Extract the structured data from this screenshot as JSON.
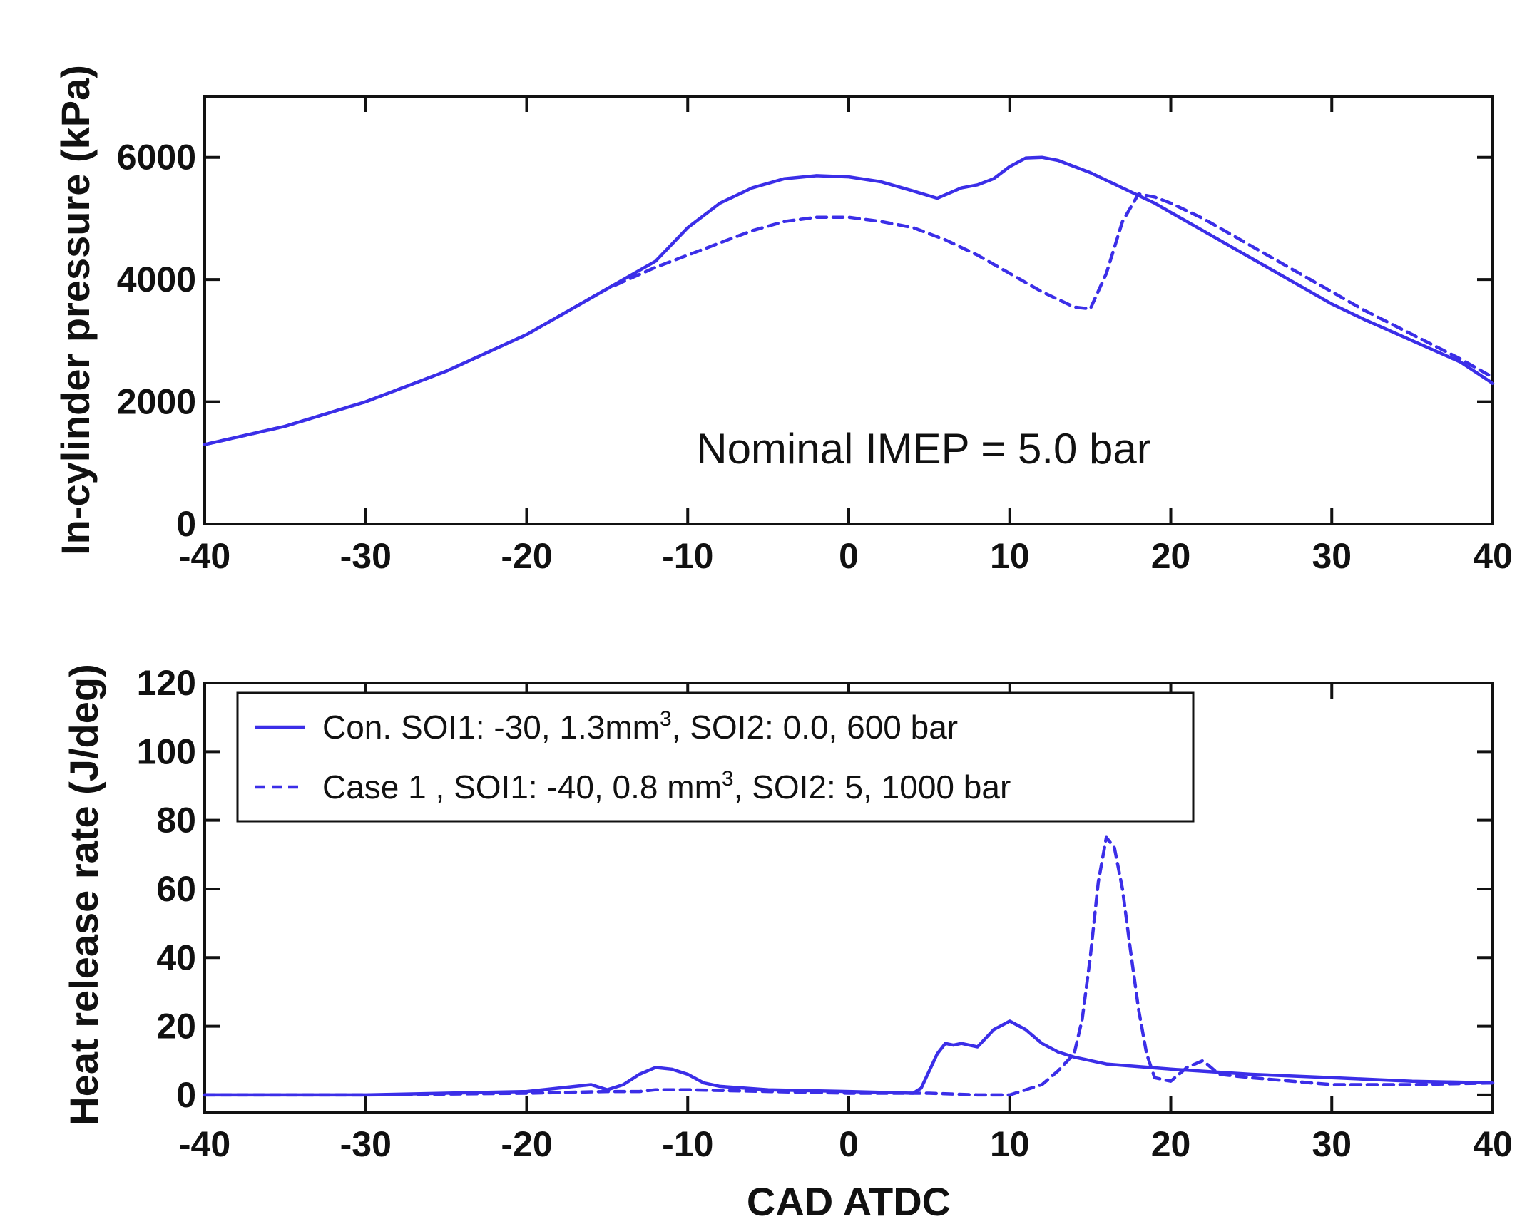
{
  "chart_data": [
    {
      "type": "line",
      "xlabel": "",
      "ylabel": "In-cylinder pressure (kPa)",
      "xlim": [
        -40,
        40
      ],
      "ylim": [
        0,
        7000
      ],
      "xticks": [
        -40,
        -30,
        -20,
        -10,
        0,
        10,
        20,
        30,
        40
      ],
      "yticks": [
        0,
        2000,
        4000,
        6000
      ],
      "annotation": "Nominal IMEP = 5.0 bar",
      "grid": false,
      "series": [
        {
          "name": "Con.",
          "style": "solid",
          "color": "#3b2ee8",
          "x": [
            -40,
            -35,
            -30,
            -25,
            -20,
            -15,
            -12,
            -10,
            -8,
            -6,
            -4,
            -2,
            0,
            2,
            4,
            5.5,
            7,
            8,
            9,
            10,
            11,
            12,
            13,
            15,
            17,
            19,
            20,
            22,
            24,
            26,
            28,
            30,
            32,
            35,
            38,
            40
          ],
          "y": [
            1300,
            1600,
            2000,
            2500,
            3100,
            3850,
            4300,
            4850,
            5250,
            5500,
            5650,
            5700,
            5680,
            5600,
            5450,
            5330,
            5500,
            5550,
            5650,
            5850,
            5990,
            6000,
            5950,
            5750,
            5500,
            5250,
            5100,
            4800,
            4500,
            4200,
            3900,
            3600,
            3350,
            3000,
            2650,
            2300
          ]
        },
        {
          "name": "Case 1",
          "style": "dashed",
          "color": "#3b2ee8",
          "x": [
            -40,
            -35,
            -30,
            -25,
            -20,
            -15,
            -12,
            -10,
            -8,
            -6,
            -4,
            -2,
            0,
            2,
            4,
            6,
            8,
            10,
            12,
            14,
            15,
            16,
            17,
            18,
            19,
            20,
            22,
            24,
            26,
            28,
            30,
            32,
            35,
            38,
            40
          ],
          "y": [
            1300,
            1600,
            2000,
            2500,
            3100,
            3850,
            4200,
            4400,
            4600,
            4800,
            4950,
            5020,
            5020,
            4950,
            4850,
            4650,
            4400,
            4100,
            3800,
            3550,
            3520,
            4100,
            4950,
            5400,
            5350,
            5250,
            5000,
            4700,
            4400,
            4100,
            3800,
            3500,
            3100,
            2700,
            2400
          ]
        }
      ]
    },
    {
      "type": "line",
      "xlabel": "CAD ATDC",
      "ylabel": "Heat release rate (J/deg)",
      "xlim": [
        -40,
        40
      ],
      "ylim": [
        -5,
        120
      ],
      "xticks": [
        -40,
        -30,
        -20,
        -10,
        0,
        10,
        20,
        30,
        40
      ],
      "yticks": [
        0,
        20,
        40,
        60,
        80,
        100,
        120
      ],
      "grid": false,
      "legend": {
        "position": "top-left",
        "entries": [
          {
            "style": "solid",
            "prefix": "Con.  SOI1: -30, 1.3mm",
            "superscript": "3",
            "suffix": ", SOI2: 0.0, 600 bar"
          },
          {
            "style": "dashed",
            "prefix": "Case 1 , SOI1: -40, 0.8 mm",
            "superscript": "3",
            "suffix": ", SOI2: 5, 1000 bar"
          }
        ]
      },
      "series": [
        {
          "name": "Con.",
          "style": "solid",
          "color": "#3b2ee8",
          "x": [
            -40,
            -30,
            -20,
            -16,
            -15,
            -14,
            -13,
            -12,
            -11,
            -10,
            -9,
            -8,
            -5,
            0,
            4,
            4.5,
            5,
            5.5,
            6,
            6.5,
            7,
            8,
            9,
            10,
            11,
            12,
            13,
            14,
            16,
            20,
            25,
            30,
            35,
            40
          ],
          "y": [
            0,
            0,
            1,
            3,
            1.5,
            3,
            6,
            8,
            7.5,
            6,
            3.5,
            2.5,
            1.5,
            1,
            0.5,
            2,
            7,
            12,
            15,
            14.5,
            15,
            14,
            19,
            21.5,
            19,
            15,
            12.5,
            11,
            9,
            7.5,
            6,
            5,
            4,
            3.5
          ]
        },
        {
          "name": "Case 1",
          "style": "dashed",
          "color": "#3b2ee8",
          "x": [
            -40,
            -30,
            -20,
            -15,
            -13,
            -12,
            -10,
            -5,
            0,
            5,
            8,
            10,
            12,
            13,
            14,
            14.5,
            15,
            15.5,
            16,
            16.5,
            17,
            17.5,
            18,
            18.5,
            19,
            20,
            21,
            22,
            23,
            25,
            30,
            35,
            40
          ],
          "y": [
            0,
            0,
            0.5,
            1,
            1,
            1.5,
            1.5,
            1,
            0.5,
            0.5,
            0,
            0,
            3,
            7,
            12,
            22,
            40,
            62,
            75,
            72,
            60,
            42,
            25,
            12,
            5,
            4,
            8,
            10,
            6,
            5,
            3,
            3,
            3.5
          ]
        }
      ]
    }
  ]
}
